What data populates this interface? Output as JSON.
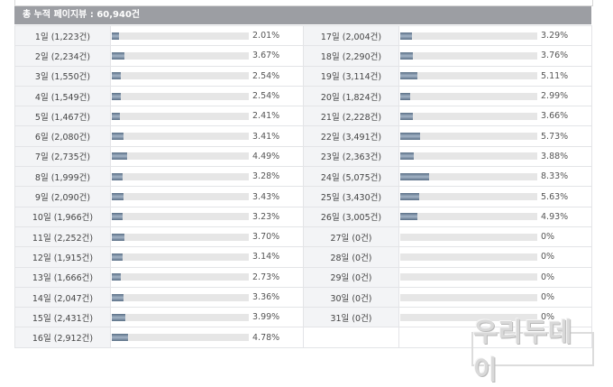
{
  "header": {
    "title": "총 누적 페이지뷰 : 60,940건"
  },
  "rows": [
    {
      "left": {
        "label": "1일 (1,223건)",
        "pct": "2.01%",
        "ratio": 0.0201
      },
      "right": {
        "label": "17일 (2,004건)",
        "pct": "3.29%",
        "ratio": 0.0329
      }
    },
    {
      "left": {
        "label": "2일 (2,234건)",
        "pct": "3.67%",
        "ratio": 0.0367
      },
      "right": {
        "label": "18일 (2,290건)",
        "pct": "3.76%",
        "ratio": 0.0376
      }
    },
    {
      "left": {
        "label": "3일 (1,550건)",
        "pct": "2.54%",
        "ratio": 0.0254
      },
      "right": {
        "label": "19일 (3,114건)",
        "pct": "5.11%",
        "ratio": 0.0511
      }
    },
    {
      "left": {
        "label": "4일 (1,549건)",
        "pct": "2.54%",
        "ratio": 0.0254
      },
      "right": {
        "label": "20일 (1,824건)",
        "pct": "2.99%",
        "ratio": 0.0299
      }
    },
    {
      "left": {
        "label": "5일 (1,467건)",
        "pct": "2.41%",
        "ratio": 0.0241
      },
      "right": {
        "label": "21일 (2,228건)",
        "pct": "3.66%",
        "ratio": 0.0366
      }
    },
    {
      "left": {
        "label": "6일 (2,080건)",
        "pct": "3.41%",
        "ratio": 0.0341
      },
      "right": {
        "label": "22일 (3,491건)",
        "pct": "5.73%",
        "ratio": 0.0573
      }
    },
    {
      "left": {
        "label": "7일 (2,735건)",
        "pct": "4.49%",
        "ratio": 0.0449
      },
      "right": {
        "label": "23일 (2,363건)",
        "pct": "3.88%",
        "ratio": 0.0388
      }
    },
    {
      "left": {
        "label": "8일 (1,999건)",
        "pct": "3.28%",
        "ratio": 0.0328
      },
      "right": {
        "label": "24일 (5,075건)",
        "pct": "8.33%",
        "ratio": 0.0833
      }
    },
    {
      "left": {
        "label": "9일 (2,090건)",
        "pct": "3.43%",
        "ratio": 0.0343
      },
      "right": {
        "label": "25일 (3,430건)",
        "pct": "5.63%",
        "ratio": 0.0563
      }
    },
    {
      "left": {
        "label": "10일 (1,966건)",
        "pct": "3.23%",
        "ratio": 0.0323
      },
      "right": {
        "label": "26일 (3,005건)",
        "pct": "4.93%",
        "ratio": 0.0493
      }
    },
    {
      "left": {
        "label": "11일 (2,252건)",
        "pct": "3.70%",
        "ratio": 0.037
      },
      "right": {
        "label": "27일 (0건)",
        "pct": "0%",
        "ratio": 0
      }
    },
    {
      "left": {
        "label": "12일 (1,915건)",
        "pct": "3.14%",
        "ratio": 0.0314
      },
      "right": {
        "label": "28일 (0건)",
        "pct": "0%",
        "ratio": 0
      }
    },
    {
      "left": {
        "label": "13일 (1,666건)",
        "pct": "2.73%",
        "ratio": 0.0273
      },
      "right": {
        "label": "29일 (0건)",
        "pct": "0%",
        "ratio": 0
      }
    },
    {
      "left": {
        "label": "14일 (2,047건)",
        "pct": "3.36%",
        "ratio": 0.0336
      },
      "right": {
        "label": "30일 (0건)",
        "pct": "0%",
        "ratio": 0
      }
    },
    {
      "left": {
        "label": "15일 (2,431건)",
        "pct": "3.99%",
        "ratio": 0.0399
      },
      "right": {
        "label": "31일 (0건)",
        "pct": "0%",
        "ratio": 0
      }
    },
    {
      "left": {
        "label": "16일 (2,912건)",
        "pct": "4.78%",
        "ratio": 0.0478
      },
      "right": null
    }
  ],
  "watermark": "우리두데이",
  "colors": {
    "header_bg": "#9c9ea3",
    "bar_fill": "#6f839a",
    "bar_track": "#e6e6e6",
    "label_bg": "#f3f4f6"
  }
}
